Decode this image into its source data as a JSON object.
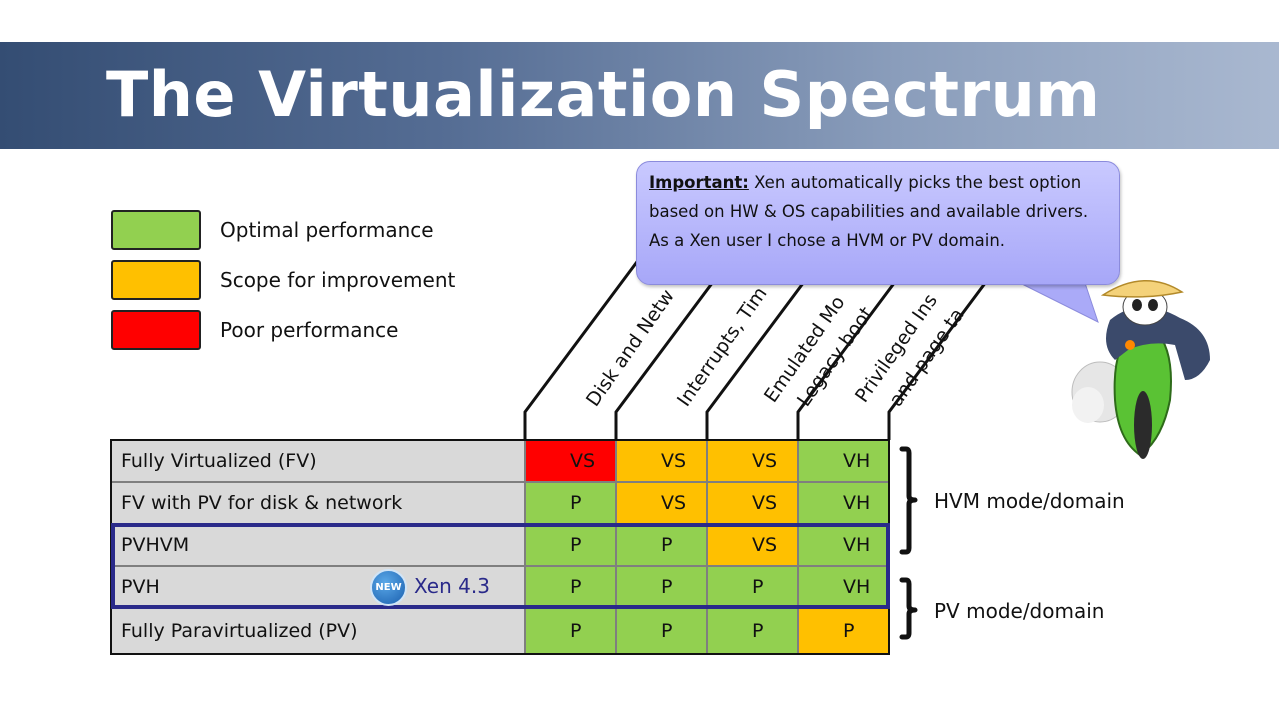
{
  "title": "The Virtualization Spectrum",
  "legend": [
    {
      "label": "Optimal performance",
      "color": "#92d050"
    },
    {
      "label": "Scope for improvement",
      "color": "#ffc000"
    },
    {
      "label": "Poor performance",
      "color": "#ff0000"
    }
  ],
  "column_headers": [
    "Disk and Netw",
    "Interrupts, Tim",
    "Emulated Mo",
    "Legacy boot",
    "Privileged Ins",
    "and page ta"
  ],
  "rows": [
    {
      "label": "Fully Virtualized (FV)",
      "cells": [
        {
          "v": "VS",
          "c": "#ff0000"
        },
        {
          "v": "VS",
          "c": "#ffc000"
        },
        {
          "v": "VS",
          "c": "#ffc000"
        },
        {
          "v": "VH",
          "c": "#92d050"
        }
      ]
    },
    {
      "label": "FV with PV for disk & network",
      "cells": [
        {
          "v": "P",
          "c": "#92d050"
        },
        {
          "v": "VS",
          "c": "#ffc000"
        },
        {
          "v": "VS",
          "c": "#ffc000"
        },
        {
          "v": "VH",
          "c": "#92d050"
        }
      ]
    },
    {
      "label": "PVHVM",
      "cells": [
        {
          "v": "P",
          "c": "#92d050"
        },
        {
          "v": "P",
          "c": "#92d050"
        },
        {
          "v": "VS",
          "c": "#ffc000"
        },
        {
          "v": "VH",
          "c": "#92d050"
        }
      ]
    },
    {
      "label": "PVH",
      "cells": [
        {
          "v": "P",
          "c": "#92d050"
        },
        {
          "v": "P",
          "c": "#92d050"
        },
        {
          "v": "P",
          "c": "#92d050"
        },
        {
          "v": "VH",
          "c": "#92d050"
        }
      ]
    },
    {
      "label": "Fully Paravirtualized (PV)",
      "cells": [
        {
          "v": "P",
          "c": "#92d050"
        },
        {
          "v": "P",
          "c": "#92d050"
        },
        {
          "v": "P",
          "c": "#92d050"
        },
        {
          "v": "P",
          "c": "#ffc000"
        }
      ]
    }
  ],
  "badge": {
    "new": "NEW",
    "label": "Xen 4.3"
  },
  "modes": {
    "hvm": "HVM mode/domain",
    "pv": "PV mode/domain"
  },
  "callout": {
    "heading": "Important:",
    "line1": " Xen automatically picks the best option based on HW & OS capabilities and available drivers.",
    "line2": "As a Xen user I chose a HVM or PV domain."
  }
}
